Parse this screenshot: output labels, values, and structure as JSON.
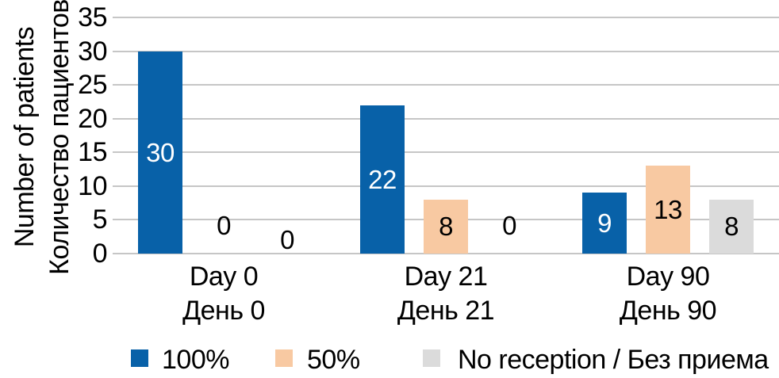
{
  "chart_data": {
    "type": "bar",
    "title": "",
    "categories": [
      {
        "en": "Day 0",
        "ru": "День 0"
      },
      {
        "en": "Day 21",
        "ru": "День 21"
      },
      {
        "en": "Day 90",
        "ru": "День 90"
      }
    ],
    "series": [
      {
        "name": "100%",
        "color": "#0861A8",
        "label_color": "#FFFFFF",
        "values": [
          30,
          22,
          9
        ]
      },
      {
        "name": "50%",
        "color": "#F8C9A2",
        "label_color": "#000000",
        "values": [
          0,
          8,
          13
        ]
      },
      {
        "name": "No reception / Без приема",
        "color": "#DBDBDB",
        "label_color": "#000000",
        "values": [
          0,
          0,
          8
        ]
      }
    ],
    "ylabel": {
      "en": "Number of patients",
      "ru": "Количество пациентов"
    },
    "yticks": [
      0,
      5,
      10,
      15,
      20,
      25,
      30,
      35
    ],
    "ylim": [
      0,
      35
    ],
    "grid": true,
    "gridline_color": "#C6C6C6",
    "text_color": "#000000",
    "legend_position": "bottom",
    "show_value_labels": true
  }
}
